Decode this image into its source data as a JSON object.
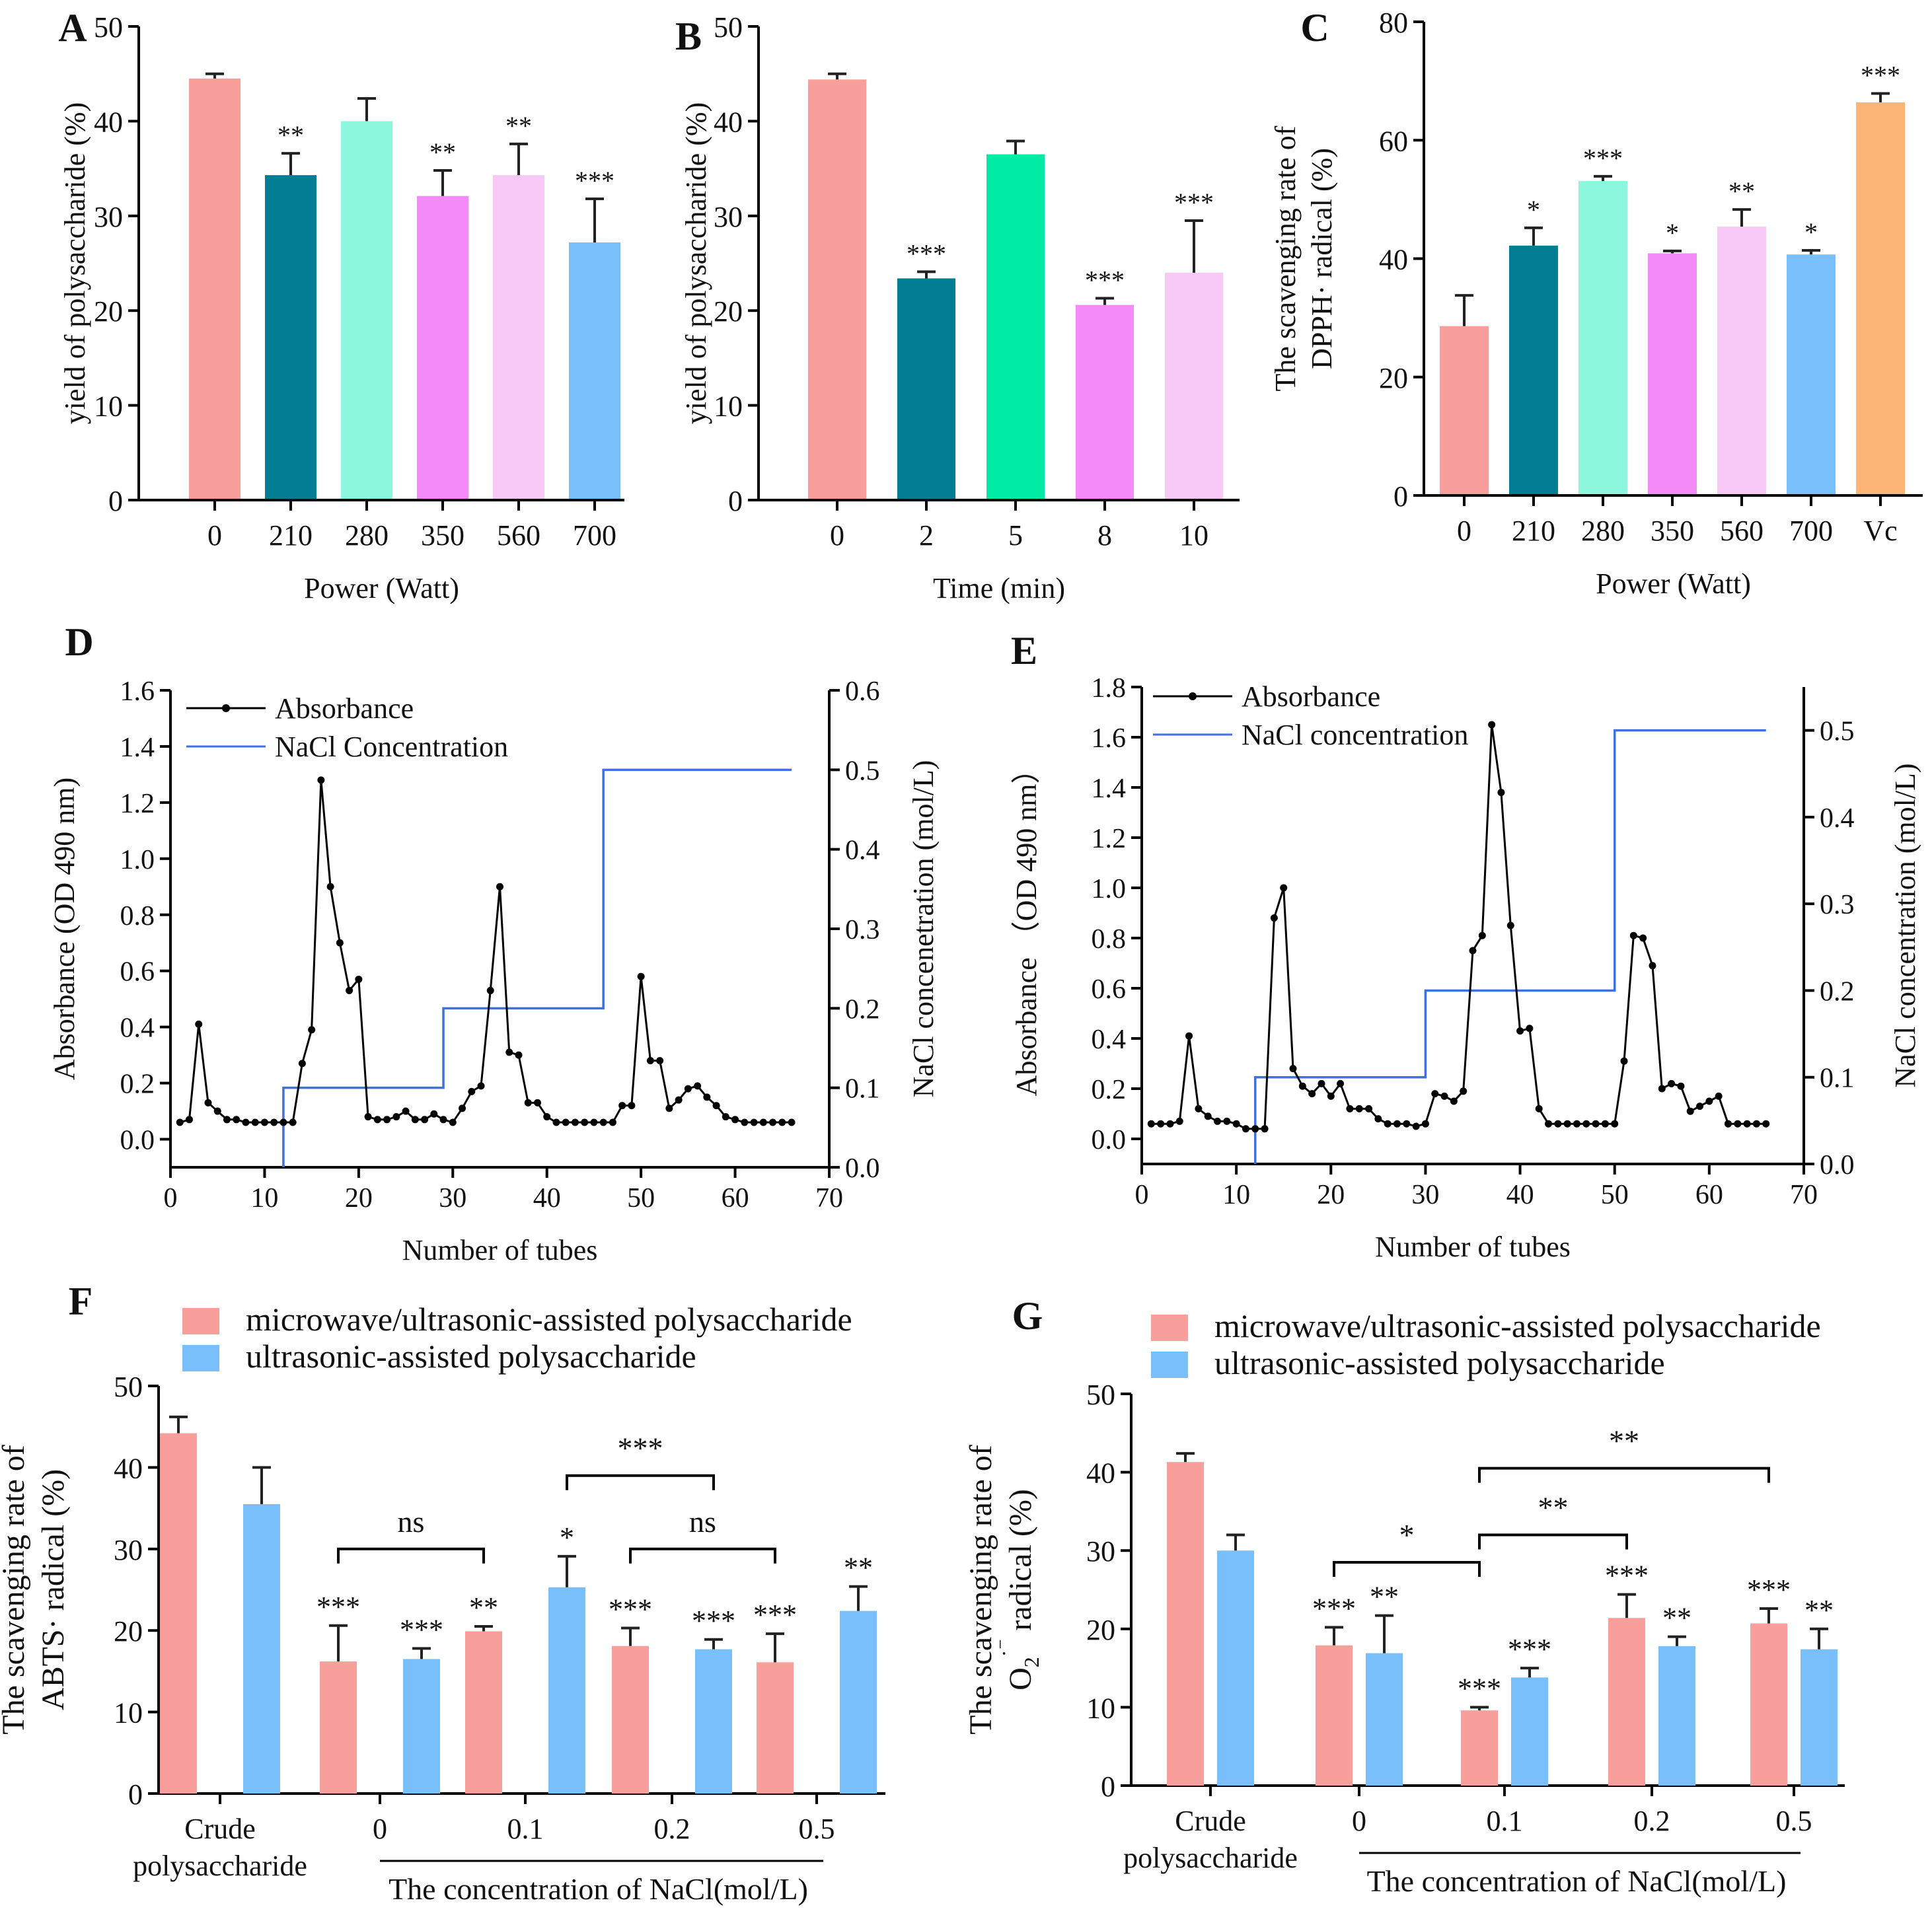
{
  "colors": {
    "pink": "#f99f9b",
    "teal": "#037d94",
    "mint": "#8cf7dd",
    "green": "#00eca5",
    "magenta": "#f48af7",
    "lightpink": "#f8c9f6",
    "blue": "#79bffb",
    "orange": "#fcb577",
    "line_black": "#000000",
    "line_blue": "#3f6fe0"
  },
  "chart_data": [
    {
      "id": "A",
      "type": "bar",
      "panel_label": "A",
      "categories": [
        "0",
        "210",
        "280",
        "350",
        "560",
        "700"
      ],
      "values": [
        44.5,
        34.3,
        40.0,
        32.1,
        34.3,
        27.2
      ],
      "errors": [
        0.5,
        2.3,
        2.4,
        2.7,
        3.3,
        4.6
      ],
      "significance": [
        "",
        "**",
        "",
        "**",
        "**",
        "***"
      ],
      "bar_colors": [
        "pink",
        "teal",
        "mint",
        "magenta",
        "lightpink",
        "blue"
      ],
      "xlabel": "Power (Watt)",
      "ylabel": "yield of polysaccharide (%)",
      "ylim": [
        0,
        50
      ],
      "yticks": [
        "0",
        "10",
        "20",
        "30",
        "40",
        "50"
      ]
    },
    {
      "id": "B",
      "type": "bar",
      "panel_label": "B",
      "categories": [
        "0",
        "2",
        "5",
        "8",
        "10"
      ],
      "values": [
        44.4,
        23.4,
        36.5,
        20.6,
        24.0
      ],
      "errors": [
        0.6,
        0.7,
        1.4,
        0.7,
        5.5
      ],
      "significance": [
        "",
        "***",
        "",
        "***",
        "***"
      ],
      "bar_colors": [
        "pink",
        "teal",
        "green",
        "magenta",
        "lightpink"
      ],
      "xlabel": "Time (min)",
      "ylabel": "yield of polysaccharide (%)",
      "ylim": [
        0,
        50
      ],
      "yticks": [
        "0",
        "10",
        "20",
        "30",
        "40",
        "50"
      ]
    },
    {
      "id": "C",
      "type": "bar",
      "panel_label": "C",
      "categories": [
        "0",
        "210",
        "280",
        "350",
        "560",
        "700",
        "Vc"
      ],
      "values": [
        28.6,
        42.2,
        53.1,
        40.9,
        45.4,
        40.7,
        66.4
      ],
      "errors": [
        5.2,
        3.0,
        0.8,
        0.4,
        2.9,
        0.7,
        1.5
      ],
      "significance": [
        "",
        "*",
        "***",
        "*",
        "**",
        "*",
        "***"
      ],
      "bar_colors": [
        "pink",
        "teal",
        "mint",
        "magenta",
        "lightpink",
        "blue",
        "orange"
      ],
      "xlabel": "Power (Watt)",
      "ylabel_line1": "The scavenging rate of",
      "ylabel_line2": "DPPH· radical (%)",
      "ylim": [
        0,
        80
      ],
      "yticks": [
        "0",
        "20",
        "40",
        "60",
        "80"
      ]
    },
    {
      "id": "D",
      "type": "line",
      "panel_label": "D",
      "xlabel": "Number of tubes",
      "ylabel": "Absorbance (OD 490 nm)",
      "ylabel_right": "NaCl concenetration (mol/L)",
      "xlim": [
        0,
        70
      ],
      "ylim": [
        -0.1,
        1.6
      ],
      "ylim_right": [
        0,
        0.6
      ],
      "xticks": [
        "0",
        "10",
        "20",
        "30",
        "40",
        "50",
        "60",
        "70"
      ],
      "yticks": [
        "0.0",
        "0.2",
        "0.4",
        "0.6",
        "0.8",
        "1.0",
        "1.2",
        "1.4",
        "1.6"
      ],
      "yticks_right": [
        "0.0",
        "0.1",
        "0.2",
        "0.3",
        "0.4",
        "0.5",
        "0.6"
      ],
      "legend": [
        "Absorbance",
        "NaCl Concentration"
      ],
      "absorbance_x": [
        1,
        2,
        3,
        4,
        5,
        6,
        7,
        8,
        9,
        10,
        11,
        12,
        13,
        14,
        15,
        16,
        17,
        18,
        19,
        20,
        21,
        22,
        23,
        24,
        25,
        26,
        27,
        28,
        29,
        30,
        31,
        32,
        33,
        34,
        35,
        36,
        37,
        38,
        39,
        40,
        41,
        42,
        43,
        44,
        45,
        46,
        47,
        48,
        49,
        50,
        51,
        52,
        53,
        54,
        55,
        56,
        57,
        58,
        59,
        60,
        61,
        62,
        63,
        64,
        65,
        66
      ],
      "absorbance_y": [
        0.06,
        0.07,
        0.41,
        0.13,
        0.1,
        0.07,
        0.07,
        0.06,
        0.06,
        0.06,
        0.06,
        0.06,
        0.06,
        0.27,
        0.39,
        1.28,
        0.9,
        0.7,
        0.53,
        0.57,
        0.08,
        0.07,
        0.07,
        0.08,
        0.1,
        0.07,
        0.07,
        0.09,
        0.07,
        0.06,
        0.11,
        0.17,
        0.19,
        0.53,
        0.9,
        0.31,
        0.3,
        0.13,
        0.13,
        0.08,
        0.06,
        0.06,
        0.06,
        0.06,
        0.06,
        0.06,
        0.06,
        0.12,
        0.12,
        0.58,
        0.28,
        0.28,
        0.11,
        0.14,
        0.18,
        0.19,
        0.15,
        0.12,
        0.08,
        0.07,
        0.06,
        0.06,
        0.06,
        0.06,
        0.06,
        0.06
      ],
      "nacl_steps_x": [
        12,
        12,
        29,
        29,
        46,
        46,
        66
      ],
      "nacl_steps_y": [
        0,
        0.1,
        0.1,
        0.2,
        0.2,
        0.5,
        0.5
      ]
    },
    {
      "id": "E",
      "type": "line",
      "panel_label": "E",
      "xlabel": "Number of tubes",
      "ylabel": "Absorbance （OD 490 nm）",
      "ylabel_right": "NaCl concentration (mol/L)",
      "xlim": [
        0,
        70
      ],
      "ylim": [
        -0.1,
        1.8
      ],
      "ylim_right": [
        0,
        0.55
      ],
      "xticks": [
        "0",
        "10",
        "20",
        "30",
        "40",
        "50",
        "60",
        "70"
      ],
      "yticks": [
        "0.0",
        "0.2",
        "0.4",
        "0.6",
        "0.8",
        "1.0",
        "1.2",
        "1.4",
        "1.6",
        "1.8"
      ],
      "yticks_right": [
        "0.0",
        "0.1",
        "0.2",
        "0.3",
        "0.4",
        "0.5"
      ],
      "legend": [
        "Absorbance",
        "NaCl concentration"
      ],
      "absorbance_x": [
        1,
        2,
        3,
        4,
        5,
        6,
        7,
        8,
        9,
        10,
        11,
        12,
        13,
        14,
        15,
        16,
        17,
        18,
        19,
        20,
        21,
        22,
        23,
        24,
        25,
        26,
        27,
        28,
        29,
        30,
        31,
        32,
        33,
        34,
        35,
        36,
        37,
        38,
        39,
        40,
        41,
        42,
        43,
        44,
        45,
        46,
        47,
        48,
        49,
        50,
        51,
        52,
        53,
        54,
        55,
        56,
        57,
        58,
        59,
        60,
        61,
        62,
        63,
        64,
        65,
        66
      ],
      "absorbance_y": [
        0.06,
        0.06,
        0.06,
        0.07,
        0.41,
        0.12,
        0.09,
        0.07,
        0.07,
        0.06,
        0.04,
        0.04,
        0.04,
        0.88,
        1.0,
        0.28,
        0.21,
        0.18,
        0.22,
        0.17,
        0.22,
        0.12,
        0.12,
        0.12,
        0.08,
        0.06,
        0.06,
        0.06,
        0.05,
        0.06,
        0.18,
        0.17,
        0.15,
        0.19,
        0.75,
        0.81,
        1.65,
        1.38,
        0.85,
        0.43,
        0.44,
        0.12,
        0.06,
        0.06,
        0.06,
        0.06,
        0.06,
        0.06,
        0.06,
        0.06,
        0.31,
        0.81,
        0.8,
        0.69,
        0.2,
        0.22,
        0.21,
        0.11,
        0.13,
        0.15,
        0.17,
        0.06,
        0.06,
        0.06,
        0.06,
        0.06
      ],
      "nacl_steps_x": [
        12,
        12,
        30,
        30,
        50,
        50,
        66
      ],
      "nacl_steps_y": [
        0,
        0.1,
        0.1,
        0.2,
        0.2,
        0.5,
        0.5
      ]
    },
    {
      "id": "F",
      "type": "bar",
      "panel_label": "F",
      "groups": [
        "Crude polysaccharide",
        "0",
        "0.1",
        "0.2",
        "0.5"
      ],
      "group_label_lines": [
        [
          "Crude",
          "polysaccharide"
        ],
        [
          "0"
        ],
        [
          "0.1"
        ],
        [
          "0.2"
        ],
        [
          "0.5"
        ]
      ],
      "series": [
        {
          "name": "microwave/ultrasonic-assisted polysaccharide",
          "color": "pink",
          "values": [
            44.2,
            16.2,
            19.9,
            18.1,
            16.1
          ],
          "errors": [
            2.0,
            4.4,
            0.6,
            2.2,
            3.5
          ],
          "significance": [
            "",
            "***",
            "**",
            "***",
            "***"
          ]
        },
        {
          "name": "ultrasonic-assisted polysaccharide",
          "color": "blue",
          "values": [
            35.5,
            16.5,
            25.3,
            17.7,
            22.4
          ],
          "errors": [
            4.5,
            1.3,
            3.8,
            1.2,
            3.0
          ],
          "significance": [
            "",
            "***",
            "*",
            "***",
            "**"
          ]
        }
      ],
      "brackets": [
        {
          "from": [
            1,
            0
          ],
          "to": [
            2,
            0
          ],
          "y": 30,
          "label": "ns"
        },
        {
          "from": [
            2,
            1
          ],
          "to": [
            3,
            1
          ],
          "y": 39,
          "label": "***"
        },
        {
          "from": [
            3,
            0
          ],
          "to": [
            4,
            0
          ],
          "y": 30,
          "label": "ns"
        }
      ],
      "ylabel_line1": "The scavenging rate of",
      "ylabel_line2": "ABTS· radical (%)",
      "xlabel": "The concentration of NaCl(mol/L)",
      "ylim": [
        0,
        50
      ],
      "yticks": [
        "0",
        "10",
        "20",
        "30",
        "40",
        "50"
      ]
    },
    {
      "id": "G",
      "type": "bar",
      "panel_label": "G",
      "groups": [
        "Crude polysaccharide",
        "0",
        "0.1",
        "0.2",
        "0.5"
      ],
      "group_label_lines": [
        [
          "Crude",
          "polysaccharide"
        ],
        [
          "0"
        ],
        [
          "0.1"
        ],
        [
          "0.2"
        ],
        [
          "0.5"
        ]
      ],
      "series": [
        {
          "name": "microwave/ultrasonic-assisted polysaccharide",
          "color": "pink",
          "values": [
            41.3,
            17.9,
            9.6,
            21.4,
            20.7
          ],
          "errors": [
            1.1,
            2.3,
            0.4,
            3.0,
            1.9
          ],
          "significance": [
            "",
            "***",
            "***",
            "***",
            "***"
          ]
        },
        {
          "name": "ultrasonic-assisted polysaccharide",
          "color": "blue",
          "values": [
            30.0,
            16.9,
            13.8,
            17.8,
            17.4
          ],
          "errors": [
            2.0,
            4.8,
            1.2,
            1.2,
            2.6
          ],
          "significance": [
            "",
            "**",
            "***",
            "**",
            "**"
          ]
        }
      ],
      "brackets": [
        {
          "from": [
            1,
            0
          ],
          "to": [
            2,
            0
          ],
          "y": 28.5,
          "label": "*"
        },
        {
          "from": [
            2,
            0
          ],
          "to": [
            3,
            0
          ],
          "y": 32,
          "label": "**"
        },
        {
          "from": [
            2,
            0
          ],
          "to": [
            4,
            0
          ],
          "y": 40.5,
          "label": "**"
        }
      ],
      "ylabel_line1": "The scavenging rate of",
      "ylabel_line2_main": "O",
      "ylabel_line2_sub": "2",
      "ylabel_line2_sup": "·⁻",
      "ylabel_line2_rest": " radical (%)",
      "xlabel": "The concentration of NaCl(mol/L)",
      "ylim": [
        0,
        50
      ],
      "yticks": [
        "0",
        "10",
        "20",
        "30",
        "40",
        "50"
      ]
    }
  ]
}
